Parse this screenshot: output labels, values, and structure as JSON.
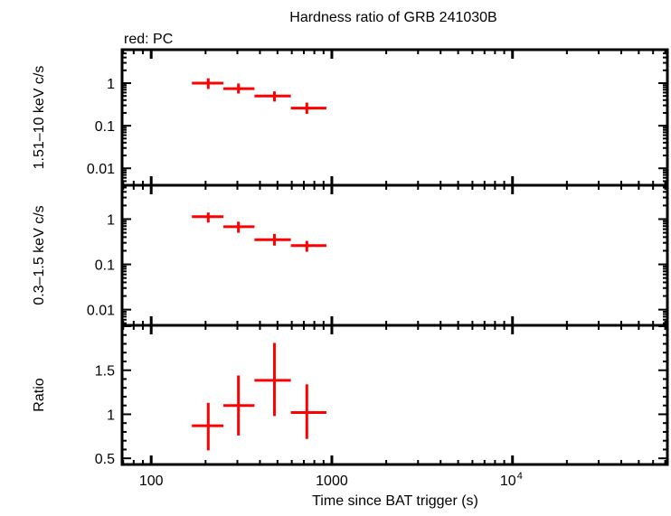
{
  "chart_data": {
    "type": "scatter",
    "title": "Hardness ratio of GRB 241030B",
    "subtitle": "red: PC",
    "xlabel": "Time since BAT trigger (s)",
    "xscale": "log",
    "xlim": [
      69,
      72000
    ],
    "xticks": [
      {
        "value": 100,
        "label": "100"
      },
      {
        "value": 1000,
        "label": "1000"
      },
      {
        "value": 10000,
        "label": "10",
        "sup": "4"
      }
    ],
    "grid": false,
    "color": "#ff0000",
    "x": [
      207,
      304,
      481,
      727
    ],
    "x_bins": [
      [
        168,
        251
      ],
      [
        251,
        373
      ],
      [
        373,
        593
      ],
      [
        593,
        933
      ]
    ],
    "panels": [
      {
        "ylabel": "1.51–10 keV c/s",
        "yscale": "log",
        "ylim": [
          0.004,
          6.1
        ],
        "yticks": [
          {
            "value": 1,
            "label": "1"
          },
          {
            "value": 0.1,
            "label": "0.1"
          },
          {
            "value": 0.01,
            "label": "0.01"
          }
        ],
        "values": [
          1.0,
          0.74,
          0.5,
          0.26
        ],
        "err_low": [
          0.73,
          0.57,
          0.37,
          0.19
        ],
        "err_high": [
          1.3,
          0.98,
          0.64,
          0.35
        ]
      },
      {
        "ylabel": "0.3–1.5 keV c/s",
        "yscale": "log",
        "ylim": [
          0.0045,
          5.6
        ],
        "yticks": [
          {
            "value": 1,
            "label": "1"
          },
          {
            "value": 0.1,
            "label": "0.1"
          },
          {
            "value": 0.01,
            "label": "0.01"
          }
        ],
        "values": [
          1.13,
          0.68,
          0.35,
          0.26
        ],
        "err_low": [
          0.84,
          0.5,
          0.26,
          0.19
        ],
        "err_high": [
          1.4,
          0.88,
          0.47,
          0.33
        ]
      },
      {
        "ylabel": "Ratio",
        "yscale": "linear",
        "ylim": [
          0.43,
          2.01
        ],
        "yticks": [
          {
            "value": 1.5,
            "label": "1.5"
          },
          {
            "value": 1,
            "label": "1"
          },
          {
            "value": 0.5,
            "label": "0.5"
          }
        ],
        "values": [
          0.87,
          1.1,
          1.385,
          1.02
        ],
        "err_low": [
          0.59,
          0.76,
          0.98,
          0.72
        ],
        "err_high": [
          1.13,
          1.44,
          1.81,
          1.34
        ]
      }
    ]
  }
}
